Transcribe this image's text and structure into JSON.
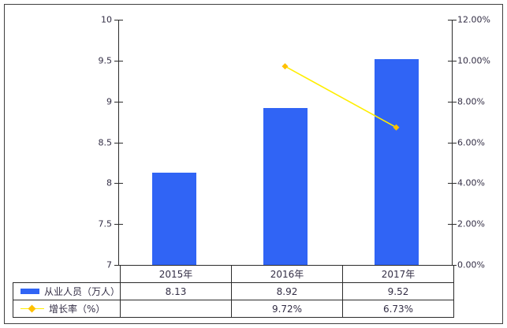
{
  "chart_data": {
    "type": "bar+line",
    "title": "",
    "categories": [
      "2015年",
      "2016年",
      "2017年"
    ],
    "series": [
      {
        "name": "从业人员（万人）",
        "type": "bar",
        "axis": "left",
        "color": "#3064F5",
        "values": [
          8.13,
          8.92,
          9.52
        ],
        "labels": [
          "8.13",
          "8.92",
          "9.52"
        ]
      },
      {
        "name": "增长率（%）",
        "type": "line",
        "axis": "right",
        "color": "#FFEE00",
        "marker_color": "#FFC000",
        "values": [
          null,
          9.72,
          6.73
        ],
        "labels": [
          "",
          "9.72%",
          "6.73%"
        ]
      }
    ],
    "left_axis": {
      "min": 7,
      "max": 10,
      "ticks": [
        "10",
        "9.5",
        "9",
        "8.5",
        "8",
        "7.5",
        "7"
      ]
    },
    "right_axis": {
      "min": 0,
      "max": 12,
      "ticks": [
        "12.00%",
        "10.00%",
        "8.00%",
        "6.00%",
        "4.00%",
        "2.00%",
        "0.00%"
      ]
    },
    "grid": "off",
    "legend_position": "bottom-table"
  }
}
